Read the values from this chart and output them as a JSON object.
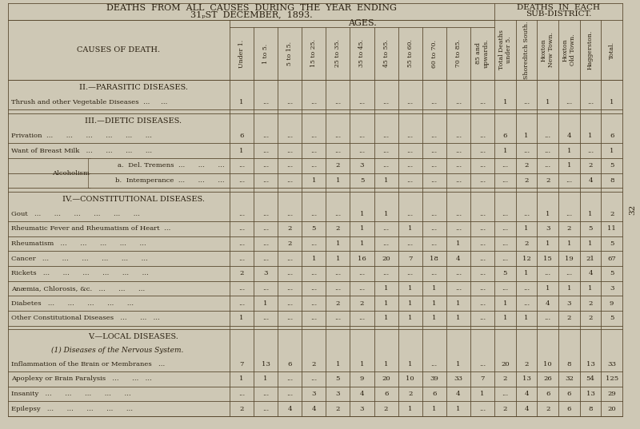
{
  "bg_color": "#cec8b5",
  "tc": "#2a2010",
  "lc": "#5a4a30",
  "title_line1": "DEATHS  FROM  ALL  CAUSES  DURING  THE  YEAR  ENDING",
  "title_line2_a": "31",
  "title_line2_b": "ST",
  "title_line2_c": "  DECEMBER,  1893.",
  "right_header_line1": "DEATHS  IN  EACH",
  "right_header_line2": "SUB-DISTRICT.",
  "page_number": "32",
  "age_headers": [
    "Under 1.",
    "1 to 5.",
    "5 to 15.",
    "15 to 25.",
    "25 to 35.",
    "35 to 45.",
    "45 to 55.",
    "55 to 60.",
    "60 to 70.",
    "70 to 85.",
    "85 and\nupwards."
  ],
  "special_cols": [
    "Total Deaths\nunder 5.",
    "Shoreditch South.",
    "Hoxton\nNew Town.",
    "Hoxton\nOld Town.",
    "Haggerston.",
    "Total."
  ],
  "rows": [
    {
      "label": "Thrush and other Vegetable Diseases  ...     ...",
      "kind": "row",
      "alc_sub": false,
      "ages": [
        "1",
        "...",
        "...",
        "...",
        "...",
        "...",
        "...",
        "...",
        "...",
        "...",
        "..."
      ],
      "total_u5": "1",
      "shore": "...",
      "hoxton_new": "1",
      "hoxton_old": "...",
      "haggerston": "...",
      "total": "1"
    },
    {
      "label": "Privation  ...      ...      ...      ...      ...      ...",
      "kind": "row",
      "alc_sub": false,
      "ages": [
        "6",
        "...",
        "...",
        "...",
        "...",
        "...",
        "...",
        "...",
        "...",
        "...",
        "..."
      ],
      "total_u5": "6",
      "shore": "1",
      "hoxton_new": "...",
      "hoxton_old": "4",
      "haggerston": "1",
      "total": "6"
    },
    {
      "label": "Want of Breast Milk   ...      ...      ...      ...",
      "kind": "row",
      "alc_sub": false,
      "ages": [
        "1",
        "...",
        "...",
        "...",
        "...",
        "...",
        "...",
        "...",
        "...",
        "...",
        "..."
      ],
      "total_u5": "1",
      "shore": "...",
      "hoxton_new": "...",
      "hoxton_old": "1",
      "haggerston": "...",
      "total": "1"
    },
    {
      "label": "a.  Del. Tremens  ...      ...      ...",
      "kind": "alc_a",
      "alc_sub": true,
      "ages": [
        "...",
        "...",
        "...",
        "...",
        "2",
        "3",
        "...",
        "...",
        "...",
        "...",
        "..."
      ],
      "total_u5": "...",
      "shore": "2",
      "hoxton_new": "...",
      "hoxton_old": "1",
      "haggerston": "2",
      "total": "5"
    },
    {
      "label": "b.  Intemperance  ...      ...      ...",
      "kind": "alc_b",
      "alc_sub": true,
      "ages": [
        "...",
        "...",
        "...",
        "1",
        "1",
        "5",
        "1",
        "...",
        "...",
        "...",
        "..."
      ],
      "total_u5": "...",
      "shore": "2",
      "hoxton_new": "2",
      "hoxton_old": "...",
      "haggerston": "4",
      "total": "8"
    },
    {
      "label": "Gout   ...      ...      ...      ...      ...      ...",
      "kind": "row",
      "alc_sub": false,
      "ages": [
        "...",
        "...",
        "...",
        "...",
        "...",
        "1",
        "1",
        "...",
        "...",
        "...",
        "..."
      ],
      "total_u5": "...",
      "shore": "...",
      "hoxton_new": "1",
      "hoxton_old": "...",
      "haggerston": "1",
      "total": "2"
    },
    {
      "label": "Rheumatic Fever and Rheumatism of Heart  ...",
      "kind": "row",
      "alc_sub": false,
      "ages": [
        "...",
        "...",
        "2",
        "5",
        "2",
        "1",
        "...",
        "1",
        "...",
        "...",
        "..."
      ],
      "total_u5": "...",
      "shore": "1",
      "hoxton_new": "3",
      "hoxton_old": "2",
      "haggerston": "5",
      "total": "11"
    },
    {
      "label": "Rheumatism   ...      ...      ...      ...      ...",
      "kind": "row",
      "alc_sub": false,
      "ages": [
        "...",
        "...",
        "2",
        "...",
        "1",
        "1",
        "...",
        "...",
        "...",
        "1",
        "..."
      ],
      "total_u5": "...",
      "shore": "2",
      "hoxton_new": "1",
      "hoxton_old": "1",
      "haggerston": "1",
      "total": "5"
    },
    {
      "label": "Cancer   ...      ...      ...      ...      ...      ...",
      "kind": "row",
      "alc_sub": false,
      "ages": [
        "...",
        "...",
        "...",
        "1",
        "1",
        "16",
        "20",
        "7",
        "18",
        "4",
        "..."
      ],
      "total_u5": "...",
      "shore": "12",
      "hoxton_new": "15",
      "hoxton_old": "19",
      "haggerston": "21",
      "total": "67"
    },
    {
      "label": "Rickets   ...      ...      ...      ...      ...      ...",
      "kind": "row",
      "alc_sub": false,
      "ages": [
        "2",
        "3",
        "...",
        "...",
        "...",
        "...",
        "...",
        "...",
        "...",
        "...",
        "..."
      ],
      "total_u5": "5",
      "shore": "1",
      "hoxton_new": "...",
      "hoxton_old": "...",
      "haggerston": "4",
      "total": "5"
    },
    {
      "label": "Anæmia, Chlorosis, &c.   ...      ...      ...",
      "kind": "row",
      "alc_sub": false,
      "ages": [
        "...",
        "...",
        "...",
        "...",
        "...",
        "...",
        "1",
        "1",
        "1",
        "...",
        "..."
      ],
      "total_u5": "...",
      "shore": "...",
      "hoxton_new": "1",
      "hoxton_old": "1",
      "haggerston": "1",
      "total": "3"
    },
    {
      "label": "Diabetes   ...      ...      ...      ...      ...",
      "kind": "row",
      "alc_sub": false,
      "ages": [
        "...",
        "1",
        "...",
        "...",
        "2",
        "2",
        "1",
        "1",
        "1",
        "1",
        "..."
      ],
      "total_u5": "1",
      "shore": "...",
      "hoxton_new": "4",
      "hoxton_old": "3",
      "haggerston": "2",
      "total": "9"
    },
    {
      "label": "Other Constitutional Diseases   ...      ...   ...",
      "kind": "row",
      "alc_sub": false,
      "ages": [
        "1",
        "...",
        "...",
        "...",
        "...",
        "...",
        "1",
        "1",
        "1",
        "1",
        "..."
      ],
      "total_u5": "1",
      "shore": "1",
      "hoxton_new": "...",
      "hoxton_old": "2",
      "haggerston": "2",
      "total": "5"
    },
    {
      "label": "Inflammation of the Brain or Membranes   ...",
      "kind": "row",
      "alc_sub": false,
      "ages": [
        "7",
        "13",
        "6",
        "2",
        "1",
        "1",
        "1",
        "1",
        "...",
        "1",
        "..."
      ],
      "total_u5": "20",
      "shore": "2",
      "hoxton_new": "10",
      "hoxton_old": "8",
      "haggerston": "13",
      "total": "33"
    },
    {
      "label": "Apoplexy or Brain Paralysis   ...      ...   ...",
      "kind": "row",
      "alc_sub": false,
      "ages": [
        "1",
        "1",
        "...",
        "...",
        "5",
        "9",
        "20",
        "10",
        "39",
        "33",
        "7"
      ],
      "total_u5": "2",
      "shore": "13",
      "hoxton_new": "26",
      "hoxton_old": "32",
      "haggerston": "54",
      "total": "125"
    },
    {
      "label": "Insanity   ...      ...      ...      ...      ...",
      "kind": "row",
      "alc_sub": false,
      "ages": [
        "...",
        "...",
        "...",
        "3",
        "3",
        "4",
        "6",
        "2",
        "6",
        "4",
        "1"
      ],
      "total_u5": "...",
      "shore": "4",
      "hoxton_new": "6",
      "hoxton_old": "6",
      "haggerston": "13",
      "total": "29"
    },
    {
      "label": "Epilepsy   ...      ...      ...      ...      ...",
      "kind": "row",
      "alc_sub": false,
      "ages": [
        "2",
        "...",
        "4",
        "4",
        "2",
        "3",
        "2",
        "1",
        "1",
        "1",
        "..."
      ],
      "total_u5": "2",
      "shore": "4",
      "hoxton_new": "2",
      "hoxton_old": "6",
      "haggerston": "8",
      "total": "20"
    }
  ]
}
